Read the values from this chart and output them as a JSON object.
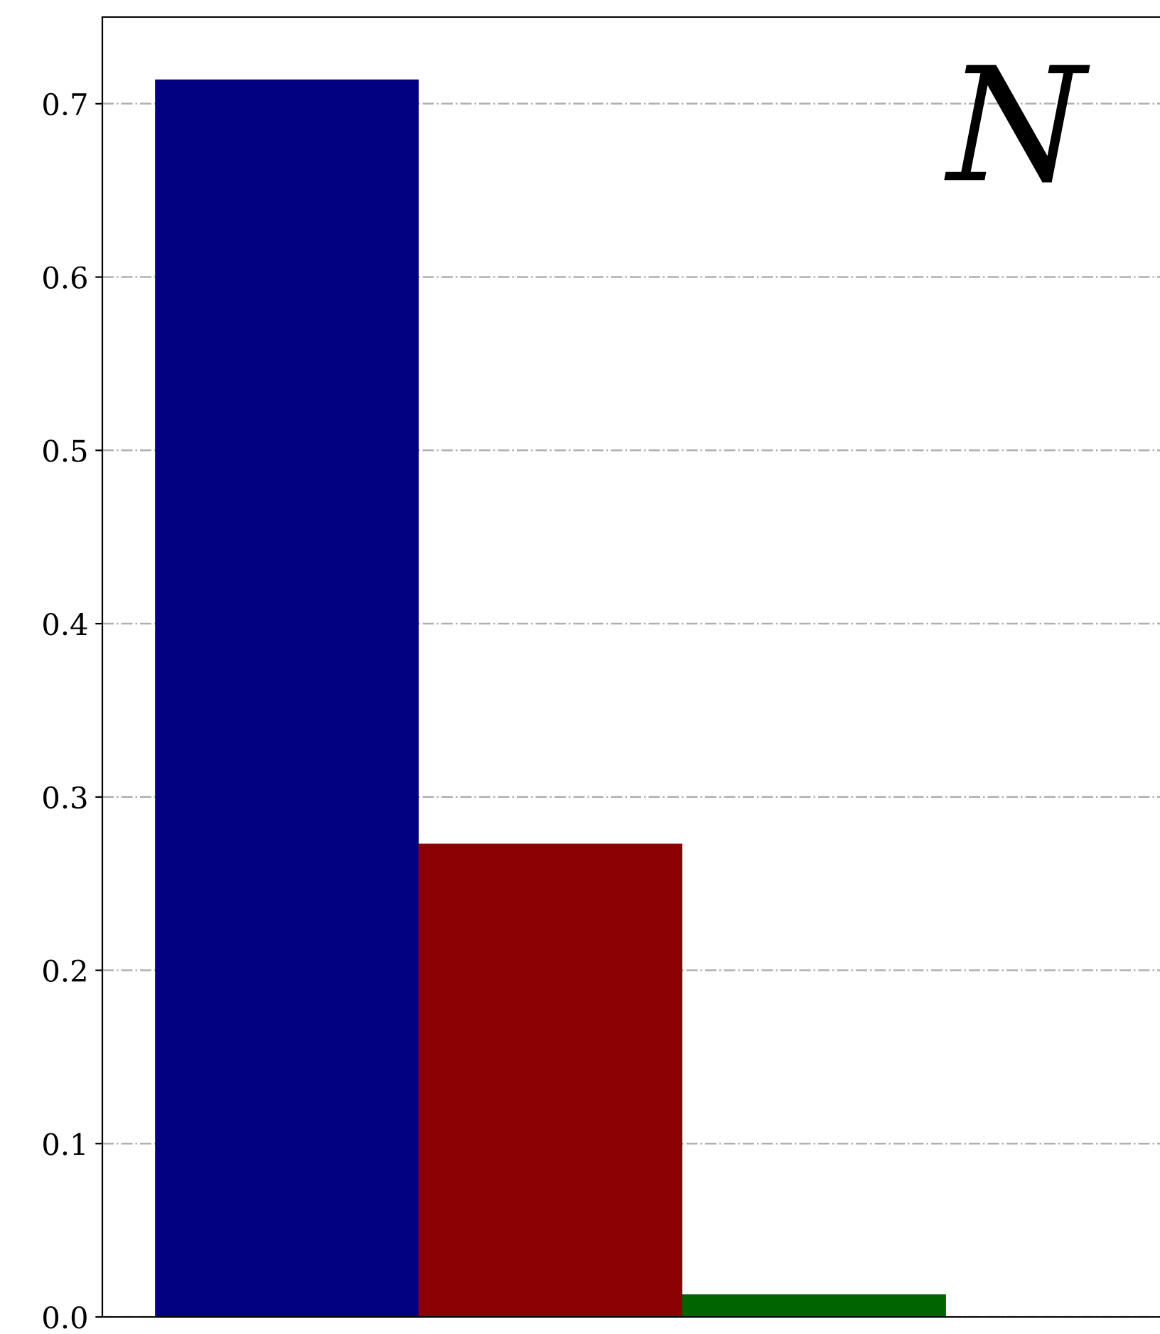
{
  "chart_data": {
    "type": "bar",
    "title": "N",
    "categories": [
      null,
      null,
      null
    ],
    "values": [
      0.714,
      0.273,
      0.013
    ],
    "colors": [
      "#000080",
      "#8b0000",
      "#006400"
    ],
    "ylim": [
      0,
      0.75
    ],
    "yticks": [
      {
        "value": 0,
        "label": "0.0"
      },
      {
        "value": 0.1,
        "label": "0.1"
      },
      {
        "value": 0.2,
        "label": "0.2"
      },
      {
        "value": 0.3,
        "label": "0.3"
      },
      {
        "value": 0.4,
        "label": "0.4"
      },
      {
        "value": 0.5,
        "label": "0.5"
      },
      {
        "value": 0.6,
        "label": "0.6"
      },
      {
        "value": 0.7,
        "label": "0.7"
      }
    ],
    "grid": "y",
    "tick_labels": "y"
  }
}
